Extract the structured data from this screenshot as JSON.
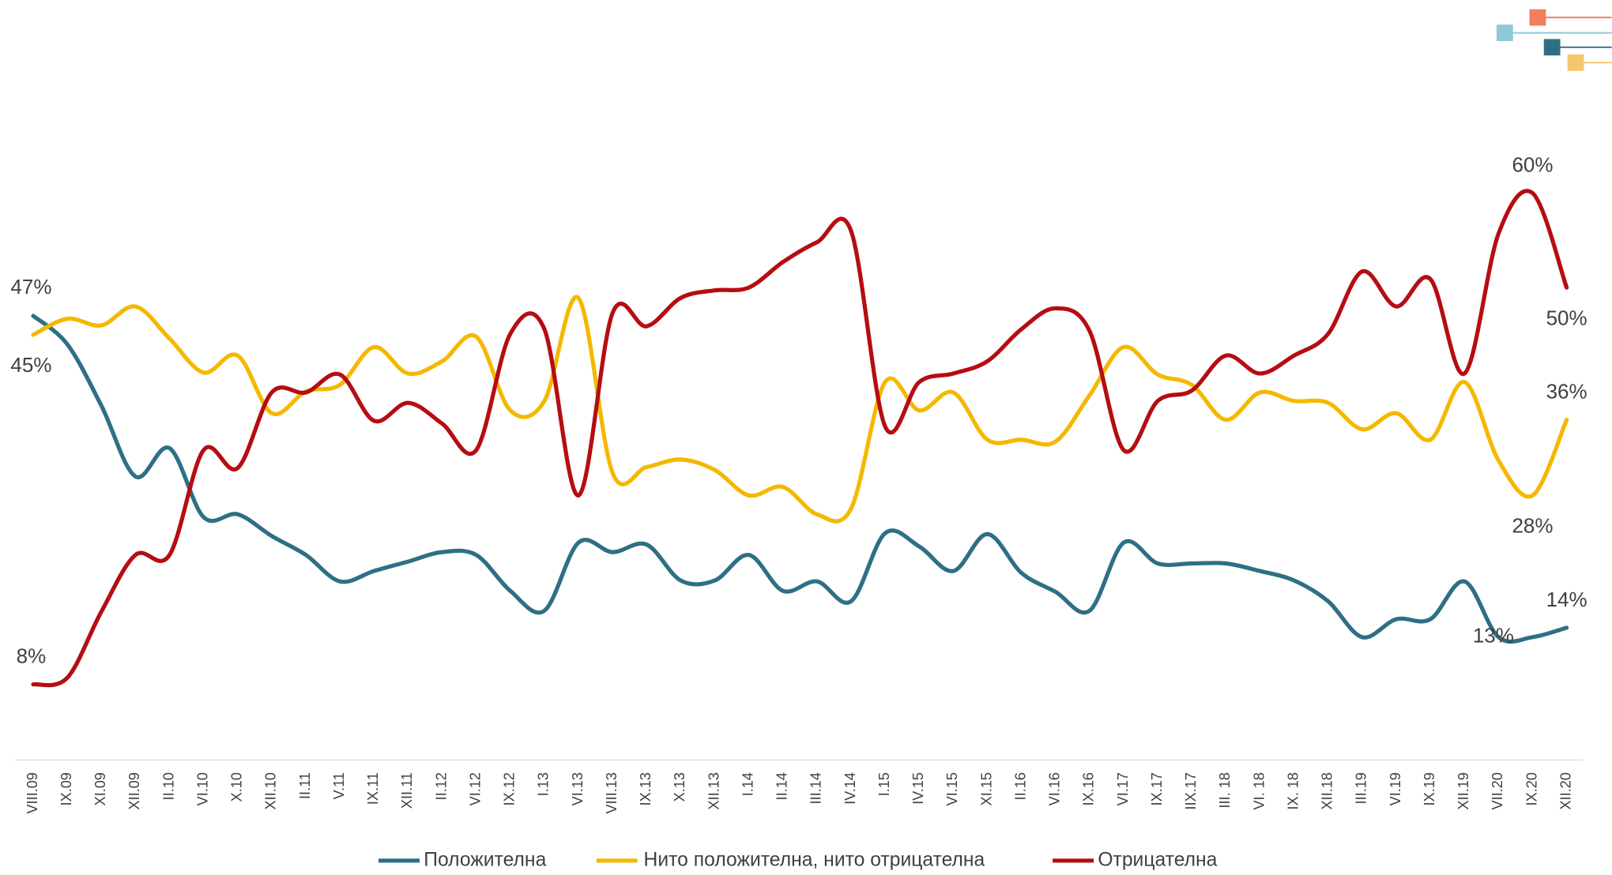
{
  "chart_data": {
    "type": "line",
    "categories": [
      "VIII.09",
      "IX.09",
      "XI.09",
      "XII.09",
      "II.10",
      "VI.10",
      "X.10",
      "XII.10",
      "II.11",
      "V.11",
      "IX.11",
      "XII.11",
      "II.12",
      "VI.12",
      "IX.12",
      "I.13",
      "VI.13",
      "VIII.13",
      "IX.13",
      "X.13",
      "XII.13",
      "I.14",
      "II.14",
      "III.14",
      "IV.14",
      "I.15",
      "IV.15",
      "VI.15",
      "XI.15",
      "II.16",
      "VI.16",
      "IX.16",
      "VI.17",
      "IX.17",
      "IIX.17",
      "III. 18",
      "VI. 18",
      "IX. 18",
      "XII.18",
      "III.19",
      "VI.19",
      "IX.19",
      "XII.19",
      "VII.20",
      "IX.20",
      "XII.20"
    ],
    "ylim": [
      0,
      70
    ],
    "series": [
      {
        "name": "Положителна",
        "color": "#2e6f86",
        "values": [
          47,
          44,
          37.5,
          30,
          33,
          25.7,
          26,
          23.7,
          21.7,
          18.9,
          20,
          21,
          22,
          21.7,
          17.9,
          15.8,
          23,
          22,
          22.8,
          19,
          19,
          21.7,
          17.9,
          18.9,
          16.8,
          24,
          22.6,
          20,
          23.9,
          19.8,
          17.8,
          15.8,
          23,
          20.8,
          20.8,
          20.8,
          20,
          19,
          16.8,
          13,
          14.9,
          14.9,
          18.9,
          13,
          13,
          14
        ],
        "value_labels": [
          "47%",
          null,
          null,
          null,
          null,
          null,
          null,
          null,
          null,
          null,
          null,
          null,
          null,
          null,
          null,
          null,
          null,
          null,
          null,
          null,
          null,
          null,
          null,
          null,
          null,
          null,
          null,
          null,
          null,
          null,
          null,
          null,
          null,
          null,
          null,
          null,
          null,
          null,
          null,
          null,
          null,
          null,
          null,
          "13%",
          null,
          "14%"
        ]
      },
      {
        "name": "Нито положителна, нито отрицателна",
        "color": "#f5b800",
        "values": [
          45,
          46.7,
          46,
          48,
          44.6,
          41,
          42.8,
          36.7,
          39,
          39.7,
          43.7,
          40.9,
          42.2,
          44.8,
          37,
          38,
          48.9,
          30.4,
          31,
          31.8,
          30.7,
          28,
          28.9,
          26,
          26.6,
          40,
          37,
          38.9,
          33.9,
          33.9,
          33.7,
          38.6,
          43.7,
          40.8,
          39.7,
          36,
          38.9,
          38,
          37.8,
          35,
          36.7,
          33.9,
          40,
          31.7,
          28,
          36
        ],
        "value_labels": [
          "45%",
          null,
          null,
          null,
          null,
          null,
          null,
          null,
          null,
          null,
          null,
          null,
          null,
          null,
          null,
          null,
          null,
          null,
          null,
          null,
          null,
          null,
          null,
          null,
          null,
          null,
          null,
          null,
          null,
          null,
          null,
          null,
          null,
          null,
          null,
          null,
          null,
          null,
          null,
          null,
          null,
          null,
          null,
          null,
          "28%",
          "36%"
        ]
      },
      {
        "name": "Отрицателна",
        "color": "#b50d12",
        "values": [
          8,
          8.7,
          15.7,
          21.7,
          21.7,
          32.8,
          30.9,
          38.9,
          38.9,
          40.8,
          35.9,
          37.8,
          35.6,
          32.8,
          45.1,
          45.6,
          28,
          47.3,
          45.9,
          48.9,
          49.7,
          50,
          52.7,
          54.8,
          56,
          35.3,
          40,
          40.9,
          42.2,
          45.6,
          47.8,
          45.4,
          32.8,
          38,
          39.1,
          42.8,
          40.9,
          42.8,
          45.1,
          51.7,
          48,
          50.9,
          40.9,
          55.7,
          60,
          50
        ],
        "value_labels": [
          "8%",
          null,
          null,
          null,
          null,
          null,
          null,
          null,
          null,
          null,
          null,
          null,
          null,
          null,
          null,
          null,
          null,
          null,
          null,
          null,
          null,
          null,
          null,
          null,
          null,
          null,
          null,
          null,
          null,
          null,
          null,
          null,
          null,
          null,
          null,
          null,
          null,
          null,
          null,
          null,
          null,
          null,
          null,
          null,
          "60%",
          "50%"
        ]
      }
    ]
  }
}
